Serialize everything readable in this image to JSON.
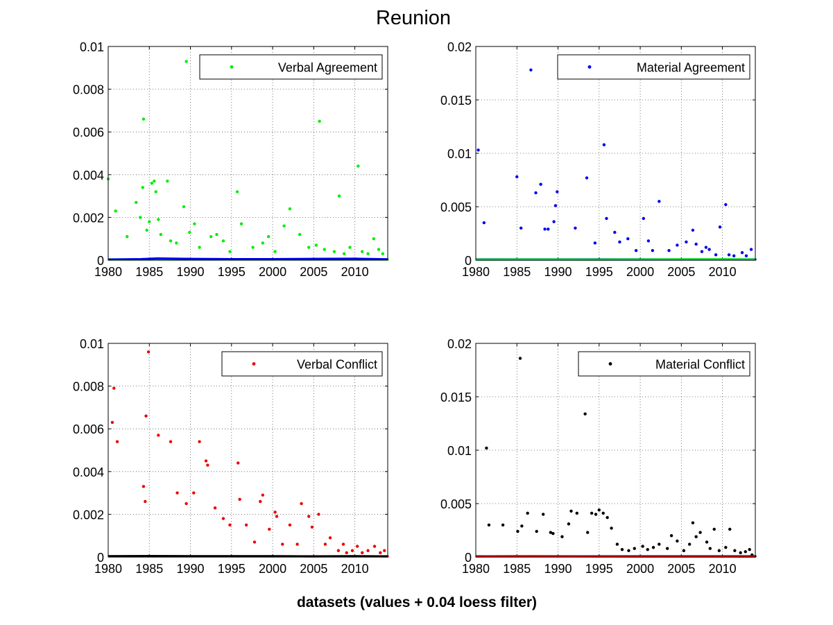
{
  "figure": {
    "title": "Reunion",
    "xlabel": "datasets (values + 0.04 loess filter)"
  },
  "chart_data": [
    {
      "type": "scatter",
      "xlim": [
        1980,
        2014
      ],
      "ylim": [
        0,
        0.01
      ],
      "xticks": [
        "1980",
        "1985",
        "1990",
        "1995",
        "2000",
        "2005",
        "2010"
      ],
      "yticks": [
        "0",
        "0.002",
        "0.004",
        "0.006",
        "0.008",
        "0.01"
      ],
      "grid": true,
      "legend_placement": "top-right",
      "series": [
        {
          "name": "Verbal Agreement",
          "color": "#00ee00",
          "marker": "dot",
          "x": [
            1980.0,
            1980.9,
            1982.3,
            1983.4,
            1983.9,
            1984.2,
            1984.3,
            1984.7,
            1985.0,
            1985.3,
            1985.6,
            1985.8,
            1986.1,
            1986.4,
            1987.2,
            1987.6,
            1988.3,
            1989.2,
            1989.5,
            1989.9,
            1990.5,
            1991.1,
            1992.5,
            1993.2,
            1994.0,
            1994.8,
            1995.7,
            1996.2,
            1997.6,
            1998.8,
            1999.5,
            2000.3,
            2001.4,
            2002.1,
            2003.3,
            2004.4,
            2005.3,
            2005.7,
            2006.3,
            2007.5,
            2008.1,
            2008.7,
            2009.4,
            2010.4,
            2010.9,
            2011.6,
            2012.3,
            2012.9,
            2013.4
          ],
          "y": [
            0.0038,
            0.0023,
            0.0011,
            0.0027,
            0.002,
            0.0034,
            0.0066,
            0.0014,
            0.0018,
            0.0036,
            0.0037,
            0.0032,
            0.0019,
            0.0012,
            0.0037,
            0.0009,
            0.0008,
            0.0025,
            0.0093,
            0.0013,
            0.0017,
            0.0006,
            0.0011,
            0.0012,
            0.0009,
            0.0004,
            0.0032,
            0.0017,
            0.0006,
            0.0008,
            0.0011,
            0.0004,
            0.0016,
            0.0024,
            0.0012,
            0.0006,
            0.0007,
            0.0065,
            0.0005,
            0.0004,
            0.003,
            0.0003,
            0.0006,
            0.0044,
            0.0004,
            0.0003,
            0.001,
            0.0005,
            0.0003
          ]
        },
        {
          "name": "",
          "color": "#0000ee",
          "marker": "line",
          "x": [
            1980,
            1984,
            1986,
            1990,
            1995,
            2000,
            2005,
            2010,
            2014
          ],
          "y": [
            3e-05,
            5e-05,
            8e-05,
            6e-05,
            5e-05,
            5e-05,
            6e-05,
            7e-05,
            4e-05
          ]
        }
      ]
    },
    {
      "type": "scatter",
      "xlim": [
        1980,
        2014
      ],
      "ylim": [
        0,
        0.02
      ],
      "xticks": [
        "1980",
        "1985",
        "1990",
        "1995",
        "2000",
        "2005",
        "2010"
      ],
      "yticks": [
        "0",
        "0.005",
        "0.01",
        "0.015",
        "0.02"
      ],
      "grid": true,
      "legend_placement": "top-right",
      "series": [
        {
          "name": "Material Agreement",
          "color": "#0000ee",
          "marker": "dot",
          "x": [
            1980.3,
            1981.0,
            1985.0,
            1985.5,
            1986.7,
            1987.3,
            1987.9,
            1988.4,
            1988.8,
            1989.5,
            1989.7,
            1989.9,
            1992.1,
            1993.5,
            1994.5,
            1995.6,
            1995.9,
            1996.9,
            1997.5,
            1998.5,
            1999.5,
            2000.4,
            2001.0,
            2001.5,
            2002.3,
            2003.5,
            2004.5,
            2005.6,
            2006.4,
            2006.8,
            2007.5,
            2008.0,
            2008.4,
            2009.2,
            2009.7,
            2010.4,
            2010.8,
            2011.4,
            2012.4,
            2012.9,
            2013.5
          ],
          "y": [
            0.0103,
            0.0035,
            0.0078,
            0.003,
            0.0178,
            0.0063,
            0.0071,
            0.0029,
            0.0029,
            0.0036,
            0.0051,
            0.0064,
            0.003,
            0.0077,
            0.0016,
            0.0108,
            0.0039,
            0.0026,
            0.0017,
            0.002,
            0.0009,
            0.0039,
            0.0018,
            0.0009,
            0.0055,
            0.0009,
            0.0014,
            0.0017,
            0.0028,
            0.0015,
            0.0008,
            0.0012,
            0.001,
            0.0005,
            0.0031,
            0.0052,
            0.0005,
            0.0004,
            0.0007,
            0.0004,
            0.001
          ]
        },
        {
          "name": "",
          "color": "#00ee00",
          "marker": "line",
          "x": [
            1980,
            1985,
            1990,
            1995,
            2000,
            2005,
            2010,
            2014
          ],
          "y": [
            5e-05,
            6e-05,
            6e-05,
            5e-05,
            6e-05,
            7e-05,
            8e-05,
            6e-05
          ]
        }
      ]
    },
    {
      "type": "scatter",
      "xlim": [
        1980,
        2014
      ],
      "ylim": [
        0,
        0.01
      ],
      "xticks": [
        "1980",
        "1985",
        "1990",
        "1995",
        "2000",
        "2005",
        "2010"
      ],
      "yticks": [
        "0",
        "0.002",
        "0.004",
        "0.006",
        "0.008",
        "0.01"
      ],
      "grid": true,
      "legend_placement": "top-right",
      "series": [
        {
          "name": "Verbal Conflict",
          "color": "#ee0000",
          "marker": "dot",
          "x": [
            1980.5,
            1980.7,
            1981.1,
            1984.3,
            1984.5,
            1984.6,
            1984.9,
            1986.1,
            1987.6,
            1988.4,
            1989.5,
            1990.4,
            1991.1,
            1991.9,
            1992.1,
            1993.0,
            1994.0,
            1994.8,
            1995.8,
            1996.0,
            1996.8,
            1997.8,
            1998.5,
            1998.8,
            1999.6,
            2000.3,
            2000.5,
            2001.2,
            2002.1,
            2003.0,
            2003.5,
            2004.4,
            2004.8,
            2005.6,
            2006.4,
            2007.0,
            2008.0,
            2008.6,
            2009.0,
            2009.7,
            2010.3,
            2010.9,
            2011.6,
            2012.4,
            2013.1,
            2013.6
          ],
          "y": [
            0.0063,
            0.0079,
            0.0054,
            0.0033,
            0.0026,
            0.0066,
            0.0096,
            0.0057,
            0.0054,
            0.003,
            0.0025,
            0.003,
            0.0054,
            0.0045,
            0.0043,
            0.0023,
            0.0018,
            0.0015,
            0.0044,
            0.0027,
            0.0015,
            0.0007,
            0.0026,
            0.0029,
            0.0013,
            0.0021,
            0.0019,
            0.0006,
            0.0015,
            0.0006,
            0.0025,
            0.0019,
            0.0014,
            0.002,
            0.0006,
            0.0009,
            0.0003,
            0.0006,
            0.0002,
            0.0003,
            0.0005,
            0.0002,
            0.0003,
            0.0005,
            0.0002,
            0.0003
          ]
        },
        {
          "name": "",
          "color": "#000000",
          "marker": "line",
          "x": [
            1980,
            1985,
            1990,
            1995,
            2000,
            2005,
            2010,
            2014
          ],
          "y": [
            4e-05,
            5e-05,
            4e-05,
            4e-05,
            4e-05,
            3e-05,
            4e-05,
            3e-05
          ]
        }
      ]
    },
    {
      "type": "scatter",
      "xlim": [
        1980,
        2014
      ],
      "ylim": [
        0,
        0.02
      ],
      "xticks": [
        "1980",
        "1985",
        "1990",
        "1995",
        "2000",
        "2005",
        "2010"
      ],
      "yticks": [
        "0",
        "0.005",
        "0.01",
        "0.015",
        "0.02"
      ],
      "grid": true,
      "legend_placement": "top-right",
      "series": [
        {
          "name": "Material Conflict",
          "color": "#000000",
          "marker": "dot",
          "x": [
            1981.3,
            1981.6,
            1983.3,
            1985.1,
            1985.4,
            1985.6,
            1986.3,
            1987.4,
            1988.2,
            1989.1,
            1989.4,
            1990.5,
            1991.3,
            1991.6,
            1992.3,
            1993.3,
            1993.6,
            1994.1,
            1994.6,
            1995.0,
            1995.5,
            1996.0,
            1996.5,
            1997.2,
            1997.8,
            1998.6,
            1999.3,
            2000.3,
            2000.9,
            2001.6,
            2002.3,
            2003.3,
            2003.8,
            2004.5,
            2005.3,
            2006.0,
            2006.4,
            2006.8,
            2007.3,
            2008.1,
            2008.5,
            2009.0,
            2009.6,
            2010.4,
            2010.9,
            2011.5,
            2012.2,
            2012.8,
            2013.3,
            2013.6
          ],
          "y": [
            0.0102,
            0.003,
            0.003,
            0.0024,
            0.0186,
            0.0029,
            0.0041,
            0.0024,
            0.004,
            0.0023,
            0.0022,
            0.0019,
            0.0031,
            0.0043,
            0.0041,
            0.0134,
            0.0023,
            0.0041,
            0.004,
            0.0044,
            0.0041,
            0.0037,
            0.0027,
            0.0012,
            0.0007,
            0.0006,
            0.0008,
            0.001,
            0.0007,
            0.0009,
            0.0012,
            0.0008,
            0.002,
            0.0015,
            0.0006,
            0.0012,
            0.0032,
            0.0019,
            0.0023,
            0.0014,
            0.0008,
            0.0026,
            0.0006,
            0.0009,
            0.0026,
            0.0006,
            0.0004,
            0.0005,
            0.0007,
            0.0002
          ]
        },
        {
          "name": "",
          "color": "#ee0000",
          "marker": "line",
          "x": [
            1980,
            1985,
            1990,
            1995,
            2000,
            2005,
            2010,
            2014
          ],
          "y": [
            6e-05,
            8e-05,
            7e-05,
            6e-05,
            5e-05,
            5e-05,
            5e-05,
            4e-05
          ]
        }
      ]
    }
  ]
}
